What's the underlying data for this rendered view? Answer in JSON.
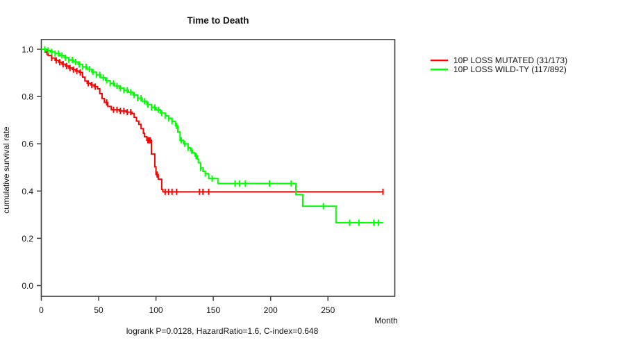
{
  "chart_data": {
    "type": "line",
    "chart_kind": "kaplan-meier-step",
    "title": "Time to Death",
    "xlabel": "Month",
    "ylabel": "cumulative survival rate",
    "footer": "logrank P=0.0128, HazardRatio=1.6, C-index=0.648",
    "xticks": [
      0,
      50,
      100,
      150,
      200,
      250
    ],
    "yticks": [
      "0.0",
      "0.2",
      "0.4",
      "0.6",
      "0.8",
      "1.0"
    ],
    "xlim": [
      0,
      308
    ],
    "ylim": [
      0.0,
      1.0
    ],
    "grid": false,
    "legend_position": "right-outside",
    "axis_color": "#3d3d3d",
    "text_color": "#111111",
    "series": [
      {
        "name": "10P LOSS MUTATED (31/173)",
        "color": "#ff0000",
        "steps": [
          [
            0,
            1.0
          ],
          [
            3,
            0.988
          ],
          [
            6,
            0.974
          ],
          [
            9,
            0.963
          ],
          [
            12,
            0.953
          ],
          [
            15,
            0.945
          ],
          [
            18,
            0.937
          ],
          [
            21,
            0.929
          ],
          [
            24,
            0.921
          ],
          [
            27,
            0.914
          ],
          [
            30,
            0.908
          ],
          [
            33,
            0.902
          ],
          [
            36,
            0.882
          ],
          [
            38,
            0.866
          ],
          [
            40,
            0.856
          ],
          [
            43,
            0.849
          ],
          [
            46,
            0.842
          ],
          [
            49,
            0.833
          ],
          [
            51,
            0.812
          ],
          [
            53,
            0.792
          ],
          [
            55,
            0.775
          ],
          [
            58,
            0.758
          ],
          [
            61,
            0.744
          ],
          [
            68,
            0.739
          ],
          [
            74,
            0.734
          ],
          [
            79,
            0.728
          ],
          [
            81,
            0.712
          ],
          [
            83,
            0.696
          ],
          [
            85,
            0.682
          ],
          [
            87,
            0.664
          ],
          [
            89,
            0.645
          ],
          [
            90,
            0.63
          ],
          [
            92,
            0.615
          ],
          [
            96,
            0.557
          ],
          [
            99,
            0.503
          ],
          [
            100,
            0.47
          ],
          [
            102,
            0.45
          ],
          [
            105,
            0.407
          ],
          [
            106,
            0.397
          ],
          [
            298,
            0.397
          ]
        ],
        "censor_months": [
          5,
          9,
          13,
          16,
          19,
          22,
          25,
          28,
          31,
          34,
          41,
          44,
          47,
          57,
          63,
          66,
          69,
          72,
          75,
          78,
          93,
          94,
          95,
          101,
          108,
          111,
          114,
          118,
          138,
          141,
          146,
          298
        ]
      },
      {
        "name": "10P LOSS WILD-TY (117/892)",
        "color": "#00ff00",
        "steps": [
          [
            0,
            1.0
          ],
          [
            4,
            0.995
          ],
          [
            8,
            0.989
          ],
          [
            12,
            0.982
          ],
          [
            16,
            0.974
          ],
          [
            20,
            0.964
          ],
          [
            24,
            0.955
          ],
          [
            28,
            0.946
          ],
          [
            32,
            0.936
          ],
          [
            36,
            0.926
          ],
          [
            40,
            0.916
          ],
          [
            44,
            0.904
          ],
          [
            48,
            0.892
          ],
          [
            52,
            0.88
          ],
          [
            56,
            0.868
          ],
          [
            60,
            0.856
          ],
          [
            64,
            0.845
          ],
          [
            68,
            0.835
          ],
          [
            72,
            0.827
          ],
          [
            76,
            0.818
          ],
          [
            80,
            0.806
          ],
          [
            84,
            0.793
          ],
          [
            88,
            0.78
          ],
          [
            92,
            0.766
          ],
          [
            96,
            0.754
          ],
          [
            100,
            0.744
          ],
          [
            104,
            0.73
          ],
          [
            108,
            0.718
          ],
          [
            111,
            0.708
          ],
          [
            114,
            0.695
          ],
          [
            117,
            0.676
          ],
          [
            119,
            0.65
          ],
          [
            121,
            0.615
          ],
          [
            124,
            0.6
          ],
          [
            128,
            0.583
          ],
          [
            130,
            0.571
          ],
          [
            132,
            0.562
          ],
          [
            134,
            0.548
          ],
          [
            136,
            0.535
          ],
          [
            137,
            0.52
          ],
          [
            139,
            0.498
          ],
          [
            141,
            0.483
          ],
          [
            143,
            0.474
          ],
          [
            146,
            0.453
          ],
          [
            154,
            0.432
          ],
          [
            222,
            0.385
          ],
          [
            228,
            0.336
          ],
          [
            257,
            0.266
          ],
          [
            298,
            0.266
          ]
        ],
        "censor_months": [
          3,
          6,
          9,
          12,
          15,
          18,
          21,
          24,
          27,
          30,
          33,
          36,
          39,
          42,
          45,
          48,
          51,
          54,
          57,
          60,
          63,
          66,
          69,
          72,
          75,
          78,
          81,
          84,
          87,
          90,
          93,
          96,
          99,
          102,
          105,
          108,
          111,
          114,
          118,
          122,
          125,
          128,
          131,
          135,
          139,
          143,
          149,
          169,
          173,
          178,
          199,
          218,
          246,
          269,
          277,
          290,
          294
        ]
      }
    ]
  }
}
